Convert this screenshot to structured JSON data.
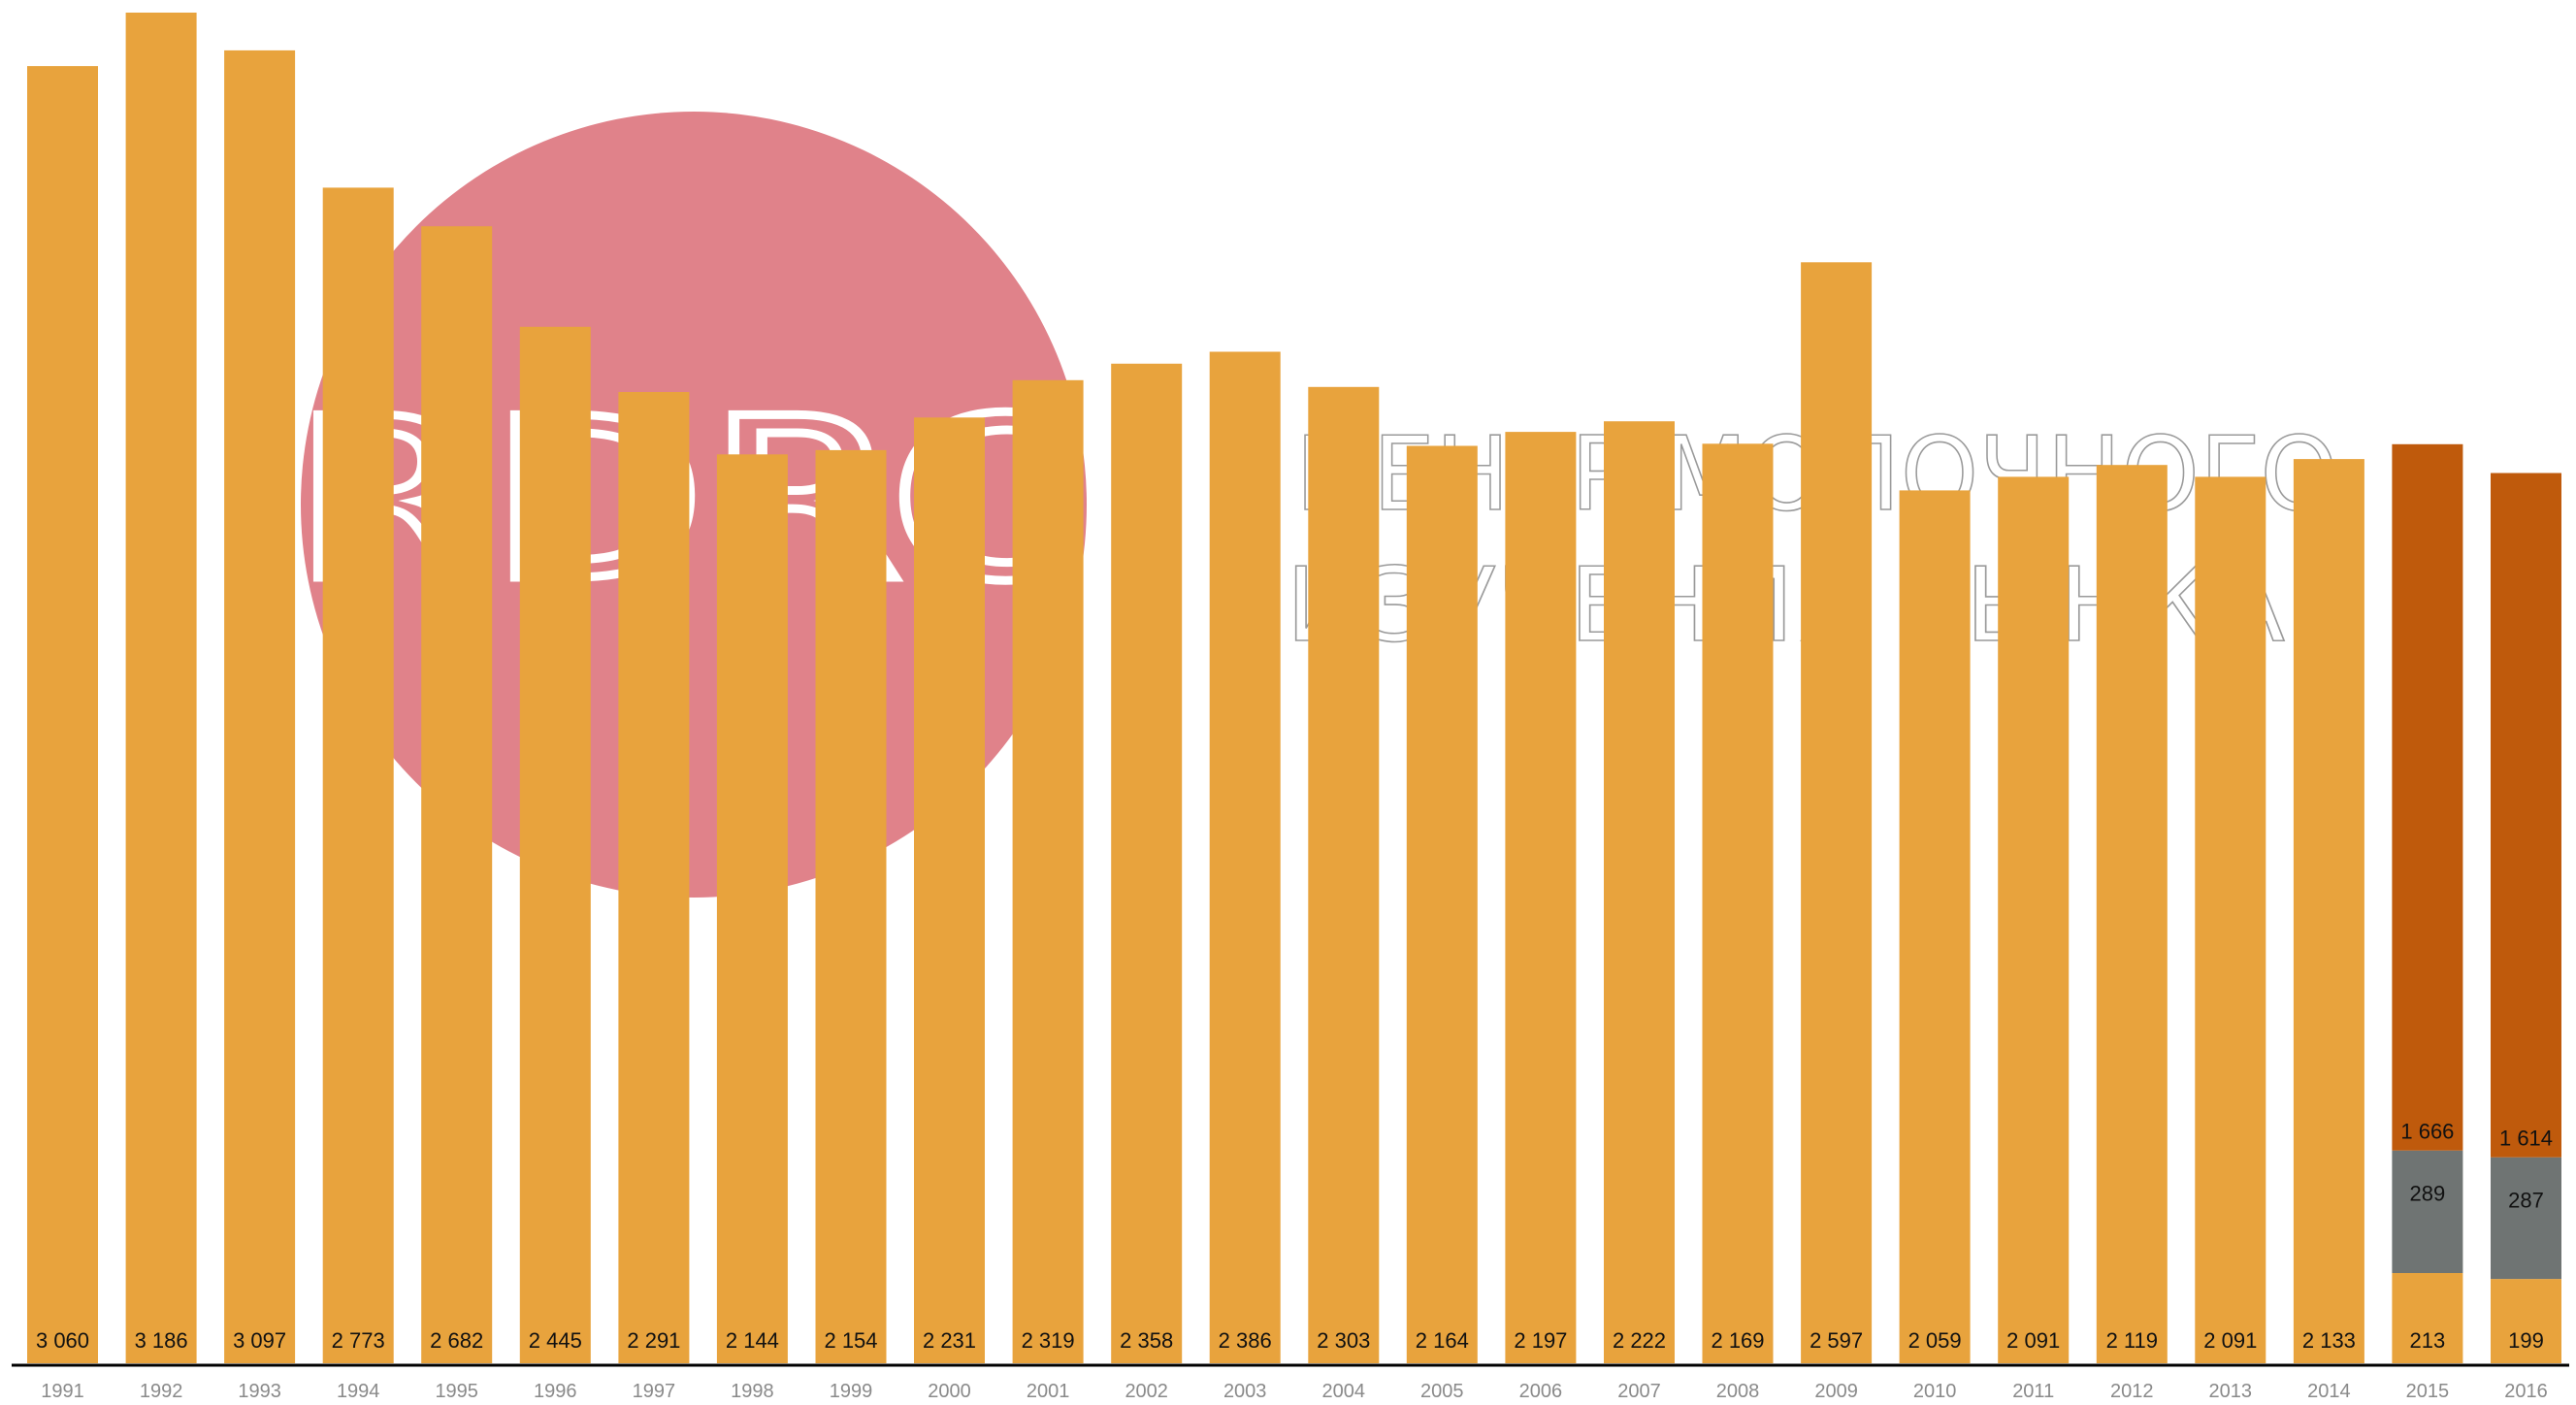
{
  "watermark": {
    "logo_letters": "RDRC",
    "line1": "ЦЕНТР МОЛОЧНОГО",
    "line2": "ИЗУЧЕНИЯ РЫНКА"
  },
  "colors": {
    "main": "#E8A33D",
    "dark_orange": "#BF5A0C",
    "gray": "#6F7473",
    "logo_circle": "#E0828A",
    "axis": "#000000",
    "tick_text": "#8A8A8A"
  },
  "chart_data": {
    "type": "bar",
    "stacked": true,
    "ylim": [
      0,
      3200
    ],
    "grid": false,
    "categories": [
      "1991",
      "1992",
      "1993",
      "1994",
      "1995",
      "1996",
      "1997",
      "1998",
      "1999",
      "2000",
      "2001",
      "2002",
      "2003",
      "2004",
      "2005",
      "2006",
      "2007",
      "2008",
      "2009",
      "2010",
      "2011",
      "2012",
      "2013",
      "2014",
      "2015",
      "2016"
    ],
    "series": [
      {
        "key": "base",
        "color": "#E8A33D",
        "values": [
          3060,
          3186,
          3097,
          2773,
          2682,
          2445,
          2291,
          2144,
          2154,
          2231,
          2319,
          2358,
          2386,
          2303,
          2164,
          2197,
          2222,
          2169,
          2597,
          2059,
          2091,
          2119,
          2091,
          2133,
          213,
          199
        ],
        "labels": [
          "3 060",
          "3 186",
          "3 097",
          "2 773",
          "2 682",
          "2 445",
          "2 291",
          "2 144",
          "2 154",
          "2 231",
          "2 319",
          "2 358",
          "2 386",
          "2 303",
          "2 164",
          "2 197",
          "2 222",
          "2 169",
          "2 597",
          "2 059",
          "2 091",
          "2 119",
          "2 091",
          "2 133",
          "213",
          "199"
        ]
      },
      {
        "key": "middle",
        "color": "#6F7473",
        "values": [
          null,
          null,
          null,
          null,
          null,
          null,
          null,
          null,
          null,
          null,
          null,
          null,
          null,
          null,
          null,
          null,
          null,
          null,
          null,
          null,
          null,
          null,
          null,
          null,
          289,
          287
        ],
        "labels": [
          "",
          "",
          "",
          "",
          "",
          "",
          "",
          "",
          "",
          "",
          "",
          "",
          "",
          "",
          "",
          "",
          "",
          "",
          "",
          "",
          "",
          "",
          "",
          "",
          "289",
          "287"
        ]
      },
      {
        "key": "top",
        "color": "#BF5A0C",
        "values": [
          null,
          null,
          null,
          null,
          null,
          null,
          null,
          null,
          null,
          null,
          null,
          null,
          null,
          null,
          null,
          null,
          null,
          null,
          null,
          null,
          null,
          null,
          null,
          null,
          1666,
          1614
        ],
        "labels": [
          "",
          "",
          "",
          "",
          "",
          "",
          "",
          "",
          "",
          "",
          "",
          "",
          "",
          "",
          "",
          "",
          "",
          "",
          "",
          "",
          "",
          "",
          "",
          "",
          "1 666",
          "1 614"
        ]
      }
    ]
  }
}
